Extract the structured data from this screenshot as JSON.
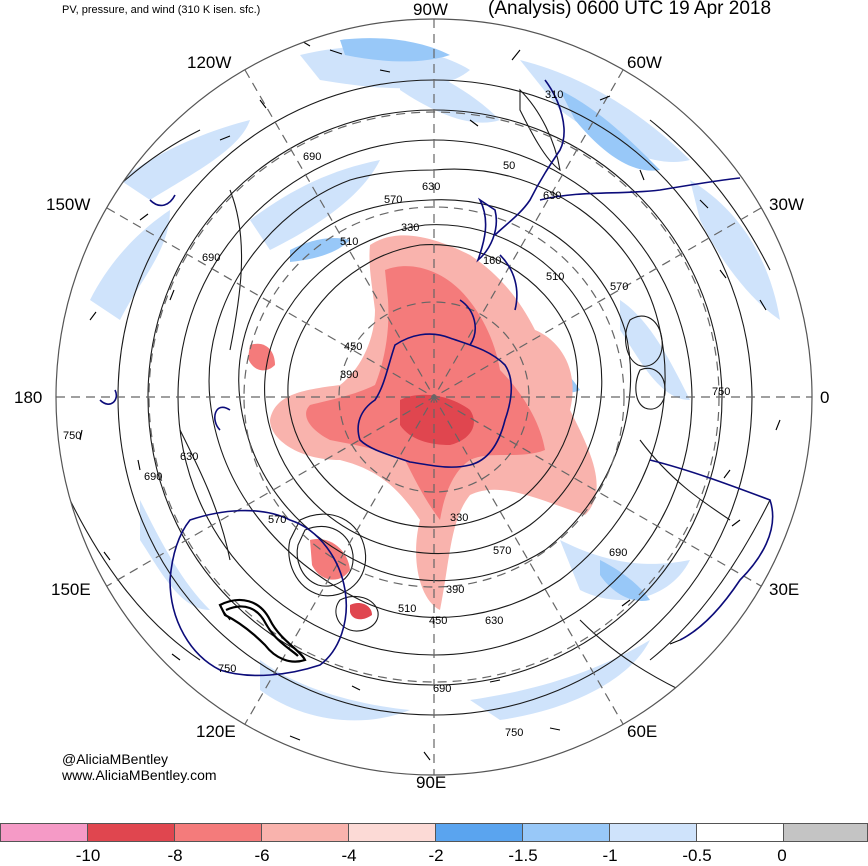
{
  "header": {
    "left_title": "PV, pressure, and wind (310 K isen. sfc.)",
    "right_title": "(Analysis) 0600 UTC 19 Apr 2018"
  },
  "longitude_labels": {
    "n90w": "90W",
    "n120w": "120W",
    "n60w": "60W",
    "n150w": "150W",
    "n30w": "30W",
    "n180": "180",
    "n0": "0",
    "n150e": "150E",
    "n30e": "30E",
    "n120e": "120E",
    "n60e": "60E",
    "n90e": "90E"
  },
  "contour_labels": [
    "310",
    "690",
    "630",
    "570",
    "510",
    "330",
    "450",
    "390",
    "750",
    "630",
    "690",
    "570",
    "330",
    "570",
    "390",
    "450",
    "630",
    "510",
    "690",
    "750",
    "750",
    "690",
    "570",
    "750",
    "690",
    "510",
    "630",
    "160",
    "50"
  ],
  "credit": {
    "handle": "@AliciaMBentley",
    "url": "www.AliciaMBentley.com"
  },
  "colorbar": {
    "labels": [
      "-10",
      "-8",
      "-6",
      "-4",
      "-2",
      "-1.5",
      "-1",
      "-0.5",
      "0"
    ],
    "colors": [
      "#f59ac6",
      "#e0464f",
      "#f47b7b",
      "#f9b3ad",
      "#fcdad6",
      "#5aa4ef",
      "#98c8f8",
      "#cfe3fb",
      "#ffffff",
      "#c4c4c4"
    ]
  },
  "colors": {
    "boundary": "#0c0c7a",
    "contour": "#1a1a1a",
    "grid": "#666666"
  }
}
